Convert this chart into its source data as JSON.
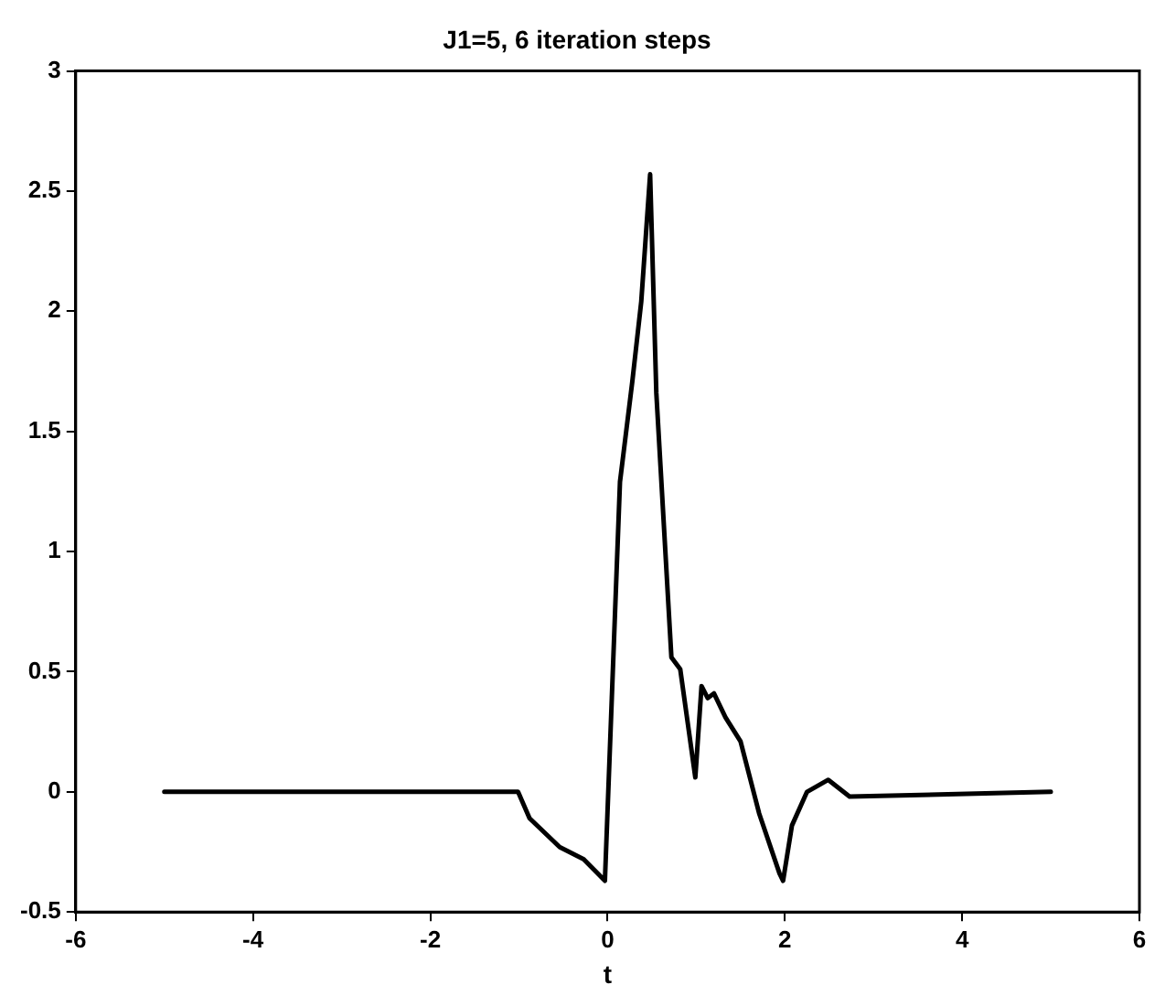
{
  "chart_data": {
    "type": "line",
    "title": "J1=5, 6 iteration steps",
    "xlabel": "t",
    "xlim": [
      -6,
      6
    ],
    "xticks": [
      -6,
      -4,
      -2,
      0,
      2,
      4,
      6
    ],
    "ylim": [
      -0.5,
      3
    ],
    "yticks": [
      -0.5,
      0,
      0.5,
      1,
      1.5,
      2,
      2.5,
      3
    ],
    "grid": false,
    "legend": false,
    "marker": "none",
    "line_style": "solid",
    "series": [
      {
        "color": "#000000",
        "x": [
          -5,
          -1.01,
          -0.88,
          -0.54,
          -0.27,
          -0.03,
          0.14,
          0.28,
          0.38,
          0.48,
          0.55,
          0.72,
          0.82,
          0.99,
          1.06,
          1.13,
          1.2,
          1.33,
          1.5,
          1.71,
          1.94,
          1.98,
          2.08,
          2.25,
          2.49,
          2.73,
          5
        ],
        "values": [
          0,
          0,
          -0.11,
          -0.23,
          -0.28,
          -0.37,
          1.29,
          1.71,
          2.04,
          2.57,
          1.66,
          0.56,
          0.51,
          0.06,
          0.44,
          0.39,
          0.41,
          0.31,
          0.21,
          -0.09,
          -0.34,
          -0.37,
          -0.14,
          0,
          0.05,
          -0.02,
          0
        ]
      }
    ]
  }
}
